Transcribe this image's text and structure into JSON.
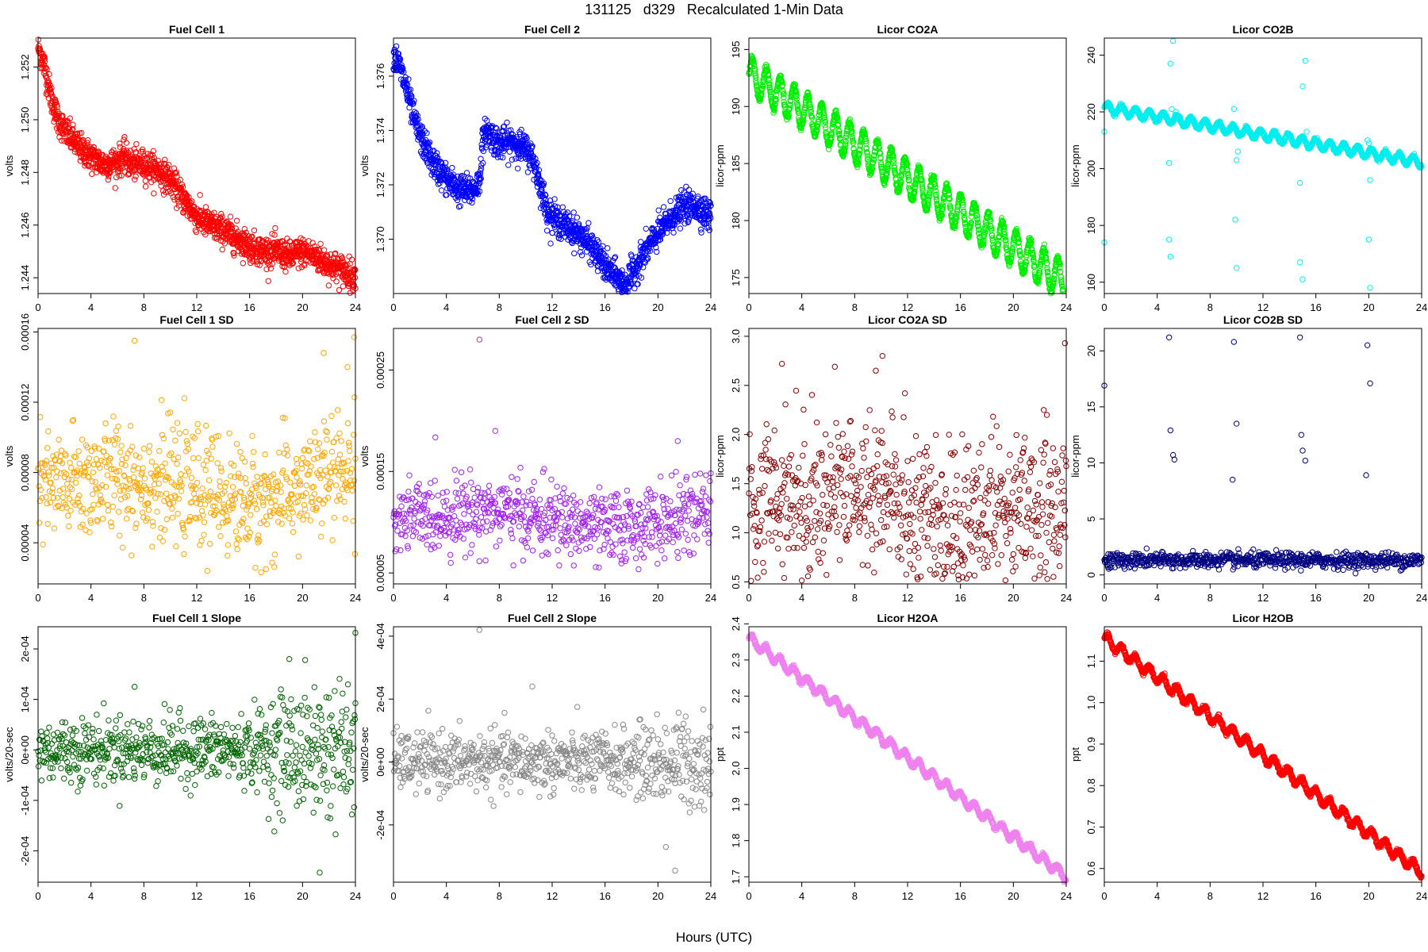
{
  "page": {
    "title": "131125   d329   Recalculated 1-Min Data",
    "xlabel": "Hours (UTC)"
  },
  "chart_data": [
    {
      "id": "fc1",
      "type": "scatter",
      "title": "Fuel Cell 1",
      "ylabel": "volts",
      "color": "#ff0000",
      "xlim": [
        0,
        24
      ],
      "ylim": [
        1.2434,
        1.2531
      ],
      "xticks": [
        0,
        4,
        8,
        12,
        16,
        20,
        24
      ],
      "yticks": [
        "1.244",
        "1.246",
        "1.248",
        "1.250",
        "1.252"
      ],
      "series": {
        "kind": "trend",
        "noise": 0.00028,
        "points": [
          [
            0,
            1.2528
          ],
          [
            0.5,
            1.252
          ],
          [
            1,
            1.2508
          ],
          [
            1.5,
            1.25
          ],
          [
            2,
            1.2496
          ],
          [
            3,
            1.249
          ],
          [
            4,
            1.2486
          ],
          [
            5,
            1.2483
          ],
          [
            6,
            1.2484
          ],
          [
            6.5,
            1.2486
          ],
          [
            7,
            1.2483
          ],
          [
            8,
            1.2483
          ],
          [
            9,
            1.2481
          ],
          [
            10,
            1.2477
          ],
          [
            11,
            1.247
          ],
          [
            12,
            1.2463
          ],
          [
            13,
            1.246
          ],
          [
            14,
            1.2458
          ],
          [
            15,
            1.2455
          ],
          [
            16,
            1.2452
          ],
          [
            17,
            1.245
          ],
          [
            18,
            1.245
          ],
          [
            19,
            1.2448
          ],
          [
            20,
            1.245
          ],
          [
            21,
            1.2448
          ],
          [
            22,
            1.2445
          ],
          [
            23,
            1.2443
          ],
          [
            24,
            1.244
          ]
        ]
      }
    },
    {
      "id": "fc2",
      "type": "scatter",
      "title": "Fuel Cell 2",
      "ylabel": "volts",
      "color": "#0000ff",
      "xlim": [
        0,
        24
      ],
      "ylim": [
        1.368,
        1.3774
      ],
      "xticks": [
        0,
        4,
        8,
        12,
        16,
        20,
        24
      ],
      "yticks": [
        "1.370",
        "1.372",
        "1.374",
        "1.376"
      ],
      "series": {
        "kind": "trend",
        "noise": 0.00028,
        "points": [
          [
            0,
            1.3768
          ],
          [
            0.5,
            1.3763
          ],
          [
            1,
            1.3755
          ],
          [
            1.5,
            1.3745
          ],
          [
            2,
            1.3738
          ],
          [
            3,
            1.3728
          ],
          [
            4,
            1.3722
          ],
          [
            5,
            1.3718
          ],
          [
            6,
            1.3718
          ],
          [
            6.5,
            1.3721
          ],
          [
            6.7,
            1.3734
          ],
          [
            7,
            1.374
          ],
          [
            8,
            1.3735
          ],
          [
            9,
            1.3736
          ],
          [
            10,
            1.3733
          ],
          [
            10.5,
            1.373
          ],
          [
            11,
            1.3722
          ],
          [
            11.5,
            1.3712
          ],
          [
            12,
            1.3708
          ],
          [
            13,
            1.3705
          ],
          [
            14,
            1.3702
          ],
          [
            15,
            1.3697
          ],
          [
            16,
            1.369
          ],
          [
            17,
            1.3685
          ],
          [
            17.5,
            1.3683
          ],
          [
            18,
            1.3687
          ],
          [
            19,
            1.3695
          ],
          [
            20,
            1.3702
          ],
          [
            21,
            1.3708
          ],
          [
            22,
            1.3712
          ],
          [
            23,
            1.3712
          ],
          [
            24,
            1.3708
          ]
        ]
      }
    },
    {
      "id": "co2a",
      "type": "scatter",
      "title": "Licor CO2A",
      "ylabel": "licor-ppm",
      "color": "#00ee00",
      "xlim": [
        0,
        24
      ],
      "ylim": [
        173.6,
        196.0
      ],
      "xticks": [
        0,
        4,
        8,
        12,
        16,
        20,
        24
      ],
      "yticks": [
        "175",
        "180",
        "185",
        "190",
        "195"
      ],
      "series": {
        "kind": "wave",
        "start": 192.8,
        "slope": -0.76,
        "amp": 1.6,
        "period": 1.05,
        "noise": 0.15
      }
    },
    {
      "id": "co2b",
      "type": "scatter",
      "title": "Licor CO2B",
      "ylabel": "licor-ppm",
      "color": "#00eeee",
      "xlim": [
        0,
        24
      ],
      "ylim": [
        156,
        246
      ],
      "xticks": [
        0,
        4,
        8,
        12,
        16,
        20,
        24
      ],
      "yticks": [
        "160",
        "180",
        "200",
        "220",
        "240"
      ],
      "series": {
        "kind": "wave",
        "start": 221.5,
        "slope": -0.8,
        "amp": 1.6,
        "period": 1.05,
        "noise": 0.3
      },
      "outliers": [
        [
          0,
          174
        ],
        [
          0,
          213
        ],
        [
          4.9,
          175
        ],
        [
          5.0,
          169
        ],
        [
          4.9,
          202
        ],
        [
          5.2,
          245
        ],
        [
          5.1,
          221
        ],
        [
          5.0,
          237
        ],
        [
          5.4,
          220
        ],
        [
          10,
          203
        ],
        [
          9.9,
          182
        ],
        [
          10,
          165
        ],
        [
          9.8,
          221
        ],
        [
          10.1,
          206
        ],
        [
          14.8,
          167
        ],
        [
          15.0,
          161
        ],
        [
          15.2,
          238
        ],
        [
          15.0,
          229
        ],
        [
          14.8,
          195
        ],
        [
          15.3,
          213
        ],
        [
          20,
          175
        ],
        [
          20.1,
          158
        ],
        [
          20,
          209
        ],
        [
          20.1,
          196
        ],
        [
          19.9,
          210
        ]
      ]
    },
    {
      "id": "fc1sd",
      "type": "scatter",
      "title": "Fuel Cell 1 SD",
      "ylabel": "volts",
      "color": "#ffa500",
      "xlim": [
        0,
        24
      ],
      "ylim": [
        1.66e-05,
        0.000162
      ],
      "xticks": [
        0,
        4,
        8,
        12,
        16,
        20,
        24
      ],
      "yticks": [
        "0.00004",
        "0.00008",
        "0.00012",
        "0.00016"
      ],
      "series": {
        "kind": "scatter",
        "mean": 7.2e-05,
        "sd": 1.6e-05,
        "points": [
          [
            0,
            7e-05
          ],
          [
            6,
            7.8e-05
          ],
          [
            12,
            7e-05
          ],
          [
            17,
            6.2e-05
          ],
          [
            22,
            7.8e-05
          ],
          [
            24,
            8.2e-05
          ]
        ]
      },
      "outliers": [
        [
          7.3,
          0.000155
        ],
        [
          23.9,
          0.000157
        ],
        [
          21.6,
          0.000148
        ],
        [
          23.4,
          0.00014
        ]
      ]
    },
    {
      "id": "fc2sd",
      "type": "scatter",
      "title": "Fuel Cell 2 SD",
      "ylabel": "volts",
      "color": "#a020f0",
      "xlim": [
        0,
        24
      ],
      "ylim": [
        3.92e-05,
        0.000291
      ],
      "xticks": [
        0,
        4,
        8,
        12,
        16,
        20,
        24
      ],
      "yticks": [
        "0.00005",
        "0.00015",
        "0.00025"
      ],
      "series": {
        "kind": "scatter",
        "mean": 0.000102,
        "sd": 1.8e-05,
        "points": [
          [
            0,
            0.000102
          ],
          [
            7,
            0.000112
          ],
          [
            12,
            0.000102
          ],
          [
            16,
            9.2e-05
          ],
          [
            20,
            0.0001
          ],
          [
            24,
            0.00011
          ]
        ]
      },
      "outliers": [
        [
          6.5,
          0.00028
        ],
        [
          7.7,
          0.00019
        ],
        [
          21.5,
          0.00018
        ]
      ]
    },
    {
      "id": "co2asd",
      "type": "scatter",
      "title": "Licor CO2A SD",
      "ylabel": "licor-ppm",
      "color": "#8b0000",
      "xlim": [
        0,
        24
      ],
      "ylim": [
        0.48,
        3.08
      ],
      "xticks": [
        0,
        4,
        8,
        12,
        16,
        20,
        24
      ],
      "yticks": [
        "0.5",
        "1.0",
        "1.5",
        "2.0",
        "2.5",
        "3.0"
      ],
      "series": {
        "kind": "scatter",
        "mean": 1.3,
        "sd": 0.38,
        "points": [
          [
            0,
            1.35
          ],
          [
            6,
            1.4
          ],
          [
            10,
            1.4
          ],
          [
            16,
            1.1
          ],
          [
            20,
            1.2
          ],
          [
            24,
            1.35
          ]
        ]
      },
      "outliers": [
        [
          23.9,
          2.93
        ],
        [
          10.1,
          2.8
        ],
        [
          2.5,
          2.72
        ],
        [
          6.5,
          2.69
        ],
        [
          9.6,
          2.65
        ]
      ]
    },
    {
      "id": "co2bsd",
      "type": "scatter",
      "title": "Licor CO2B SD",
      "ylabel": "licor-ppm",
      "color": "#000080",
      "xlim": [
        0,
        24
      ],
      "ylim": [
        -0.8,
        22.0
      ],
      "xticks": [
        0,
        4,
        8,
        12,
        16,
        20,
        24
      ],
      "yticks": [
        "0",
        "5",
        "10",
        "15",
        "20"
      ],
      "series": {
        "kind": "scatter",
        "mean": 1.3,
        "sd": 0.35,
        "points": [
          [
            0,
            1.3
          ],
          [
            12,
            1.3
          ],
          [
            24,
            1.3
          ]
        ]
      },
      "outliers": [
        [
          0,
          16.9
        ],
        [
          4.9,
          21.2
        ],
        [
          5.0,
          12.9
        ],
        [
          5.2,
          10.7
        ],
        [
          5.3,
          10.3
        ],
        [
          9.7,
          8.5
        ],
        [
          9.8,
          20.8
        ],
        [
          10,
          13.5
        ],
        [
          14.8,
          21.2
        ],
        [
          14.9,
          12.5
        ],
        [
          15,
          11.1
        ],
        [
          15.2,
          10.2
        ],
        [
          19.8,
          8.9
        ],
        [
          19.9,
          20.5
        ],
        [
          20.1,
          17.1
        ]
      ]
    },
    {
      "id": "fc1slope",
      "type": "scatter",
      "title": "Fuel Cell 1 Slope",
      "ylabel": "volts/20-sec",
      "color": "#006400",
      "xlim": [
        0,
        24
      ],
      "ylim": [
        -0.000262,
        0.000244
      ],
      "xticks": [
        0,
        4,
        8,
        12,
        16,
        20,
        24
      ],
      "yticks": [
        "-2e-04",
        "-1e-04",
        "0e+00",
        "1e-04",
        "2e-04"
      ],
      "series": {
        "kind": "scatter",
        "mean": 0.0,
        "sd": 3.2e-05,
        "points": [
          [
            0,
            0
          ],
          [
            24,
            0
          ]
        ],
        "sdPoints": [
          [
            0,
            3.2e-05
          ],
          [
            16,
            3.4e-05
          ],
          [
            18,
            5.5e-05
          ],
          [
            20,
            6.5e-05
          ],
          [
            24,
            7e-05
          ]
        ]
      },
      "outliers": [
        [
          24,
          0.000232
        ],
        [
          7.3,
          0.000125
        ],
        [
          21.3,
          -0.000243
        ],
        [
          19,
          0.00018
        ]
      ]
    },
    {
      "id": "fc2slope",
      "type": "scatter",
      "title": "Fuel Cell 2 Slope",
      "ylabel": "volts/20-sec",
      "color": "#888888",
      "xlim": [
        0,
        24
      ],
      "ylim": [
        -0.000382,
        0.00043
      ],
      "xticks": [
        0,
        4,
        8,
        12,
        16,
        20,
        24
      ],
      "yticks": [
        "-2e-04",
        "0e+00",
        "2e-04",
        "4e-04"
      ],
      "series": {
        "kind": "scatter",
        "mean": 0.0,
        "sd": 4.5e-05,
        "points": [
          [
            0,
            0
          ],
          [
            24,
            0
          ]
        ],
        "sdPoints": [
          [
            0,
            4.5e-05
          ],
          [
            18,
            5e-05
          ],
          [
            20,
            7e-05
          ],
          [
            24,
            7.5e-05
          ]
        ]
      },
      "outliers": [
        [
          6.5,
          0.00042
        ],
        [
          21.3,
          -0.000345
        ],
        [
          10.5,
          0.00024
        ],
        [
          20.6,
          -0.00027
        ]
      ]
    },
    {
      "id": "h2oa",
      "type": "scatter",
      "title": "Licor H2OA",
      "ylabel": "ppt",
      "color": "#ee82ee",
      "xlim": [
        0,
        24
      ],
      "ylim": [
        1.685,
        2.392
      ],
      "xticks": [
        0,
        4,
        8,
        12,
        16,
        20,
        24
      ],
      "yticks": [
        "1.7",
        "1.8",
        "1.9",
        "2.0",
        "2.1",
        "2.2",
        "2.3",
        "2.4"
      ],
      "series": {
        "kind": "wave",
        "start": 2.36,
        "slope": -0.0275,
        "amp": 0.013,
        "period": 1.05,
        "noise": 0.003
      }
    },
    {
      "id": "h2ob",
      "type": "scatter",
      "title": "Licor H2OB",
      "ylabel": "ppt",
      "color": "#ff0000",
      "xlim": [
        0,
        24
      ],
      "ylim": [
        0.567,
        1.183
      ],
      "xticks": [
        0,
        4,
        8,
        12,
        16,
        20,
        24
      ],
      "yticks": [
        "0.6",
        "0.7",
        "0.8",
        "0.9",
        "1.0",
        "1.1"
      ],
      "series": {
        "kind": "wave",
        "start": 1.155,
        "slope": -0.0235,
        "amp": 0.012,
        "period": 1.05,
        "noise": 0.003
      }
    }
  ]
}
